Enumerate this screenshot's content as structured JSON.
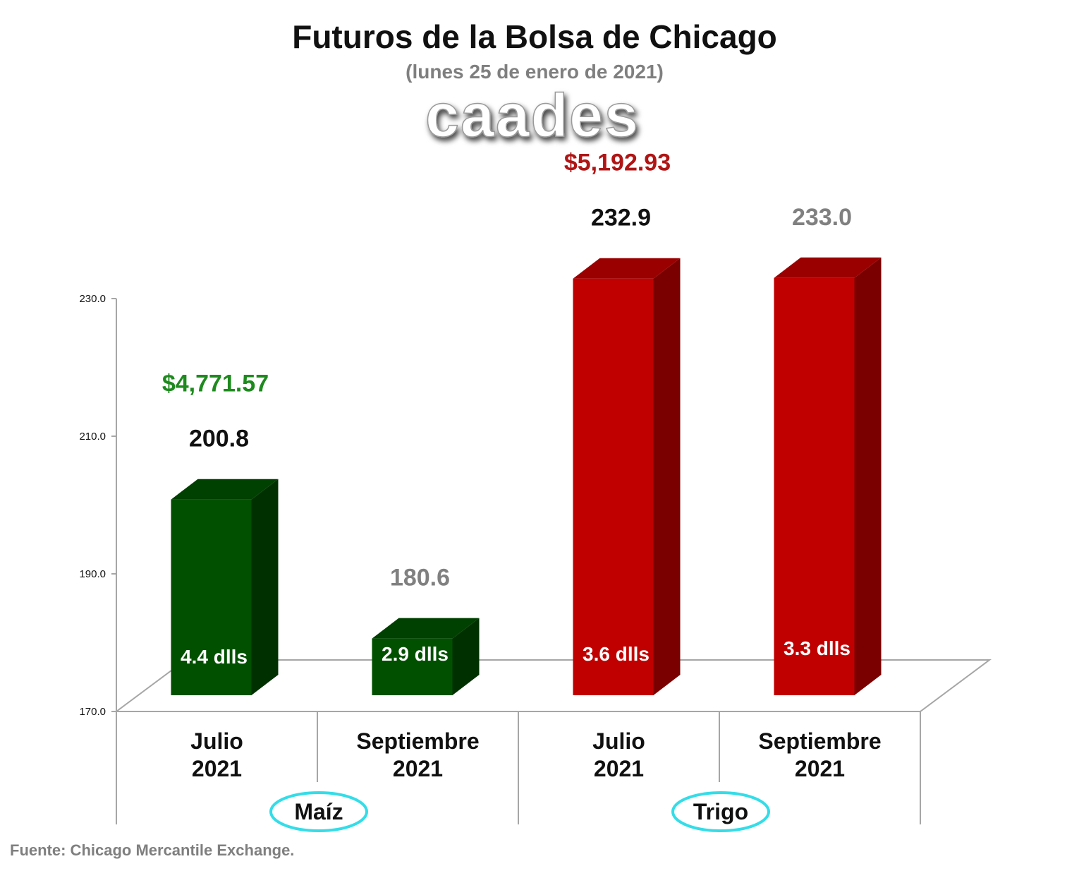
{
  "title": "Futuros de la Bolsa de Chicago",
  "subtitle": "(lunes 25 de enero de 2021)",
  "logo_text": "caades",
  "source": "Fuente: Chicago Mercantile Exchange.",
  "colors": {
    "maiz_front": "#005000",
    "maiz_side": "#003000",
    "maiz_top": "#004000",
    "trigo_front": "#c00000",
    "trigo_side": "#7a0000",
    "trigo_top": "#9a0000",
    "price_maiz": "#1e8a1e",
    "price_trigo": "#b01515",
    "value_dark": "#111111",
    "value_gray": "#808080",
    "group_ring": "#33dde8"
  },
  "chart_data": {
    "type": "bar",
    "title": "Futuros de la Bolsa de Chicago",
    "subtitle": "(lunes 25 de enero de 2021)",
    "ylim": [
      170,
      230
    ],
    "yticks": [
      "170.0",
      "190.0",
      "210.0",
      "230.0"
    ],
    "ytick_values": [
      170,
      190,
      210,
      230
    ],
    "groups": [
      "Maíz",
      "Trigo"
    ],
    "categories": [
      {
        "line1": "Julio",
        "line2": "2021"
      },
      {
        "line1": "Septiembre",
        "line2": "2021"
      },
      {
        "line1": "Julio",
        "line2": "2021"
      },
      {
        "line1": "Septiembre",
        "line2": "2021"
      }
    ],
    "bars": [
      {
        "group": 0,
        "value": 200.8,
        "label": "200.8",
        "label_style": "dark",
        "change": "4.4 dlls",
        "price": "$4,771.57"
      },
      {
        "group": 0,
        "value": 180.6,
        "label": "180.6",
        "label_style": "gray",
        "change": "2.9 dlls",
        "price": ""
      },
      {
        "group": 1,
        "value": 232.9,
        "label": "232.9",
        "label_style": "dark",
        "change": "3.6 dlls",
        "price": "$5,192.93"
      },
      {
        "group": 1,
        "value": 233.0,
        "label": "233.0",
        "label_style": "gray",
        "change": "3.3 dlls",
        "price": ""
      }
    ]
  }
}
